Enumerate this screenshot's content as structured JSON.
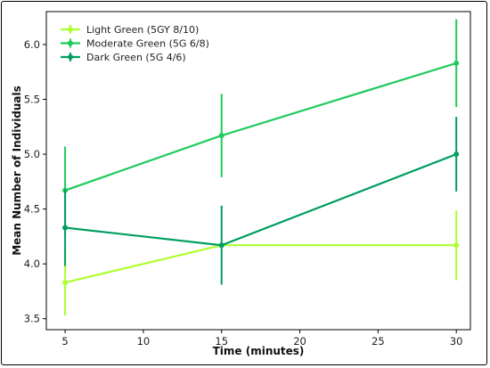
{
  "chart_data": {
    "type": "line",
    "xlabel": "Time (minutes)",
    "ylabel": "Mean Number of Individuals",
    "xlim": [
      3.8,
      30.9
    ],
    "ylim": [
      3.4,
      6.3
    ],
    "xticks": [
      5,
      10,
      15,
      20,
      25,
      30
    ],
    "yticks": [
      3.5,
      4.0,
      4.5,
      5.0,
      5.5,
      6.0
    ],
    "ytick_labels": [
      "3.5",
      "4.0",
      "4.5",
      "5.0",
      "5.5",
      "6.0"
    ],
    "legend_position": "top-left",
    "x": [
      5,
      15,
      30
    ],
    "series": [
      {
        "name": "Light Green (5GY 8/10)",
        "color": "#adff2f",
        "values": [
          3.83,
          4.17,
          4.17
        ],
        "errors": [
          0.3,
          0.0,
          0.32
        ]
      },
      {
        "name": "Moderate Green (5G 6/8)",
        "color": "#1ecb5c",
        "values": [
          4.67,
          5.17,
          5.83
        ],
        "errors": [
          0.4,
          0.38,
          0.4
        ]
      },
      {
        "name": "Dark Green (5G 4/6)",
        "color": "#009e60",
        "values": [
          4.33,
          4.17,
          5.0
        ],
        "errors": [
          0.35,
          0.36,
          0.34
        ]
      }
    ]
  }
}
